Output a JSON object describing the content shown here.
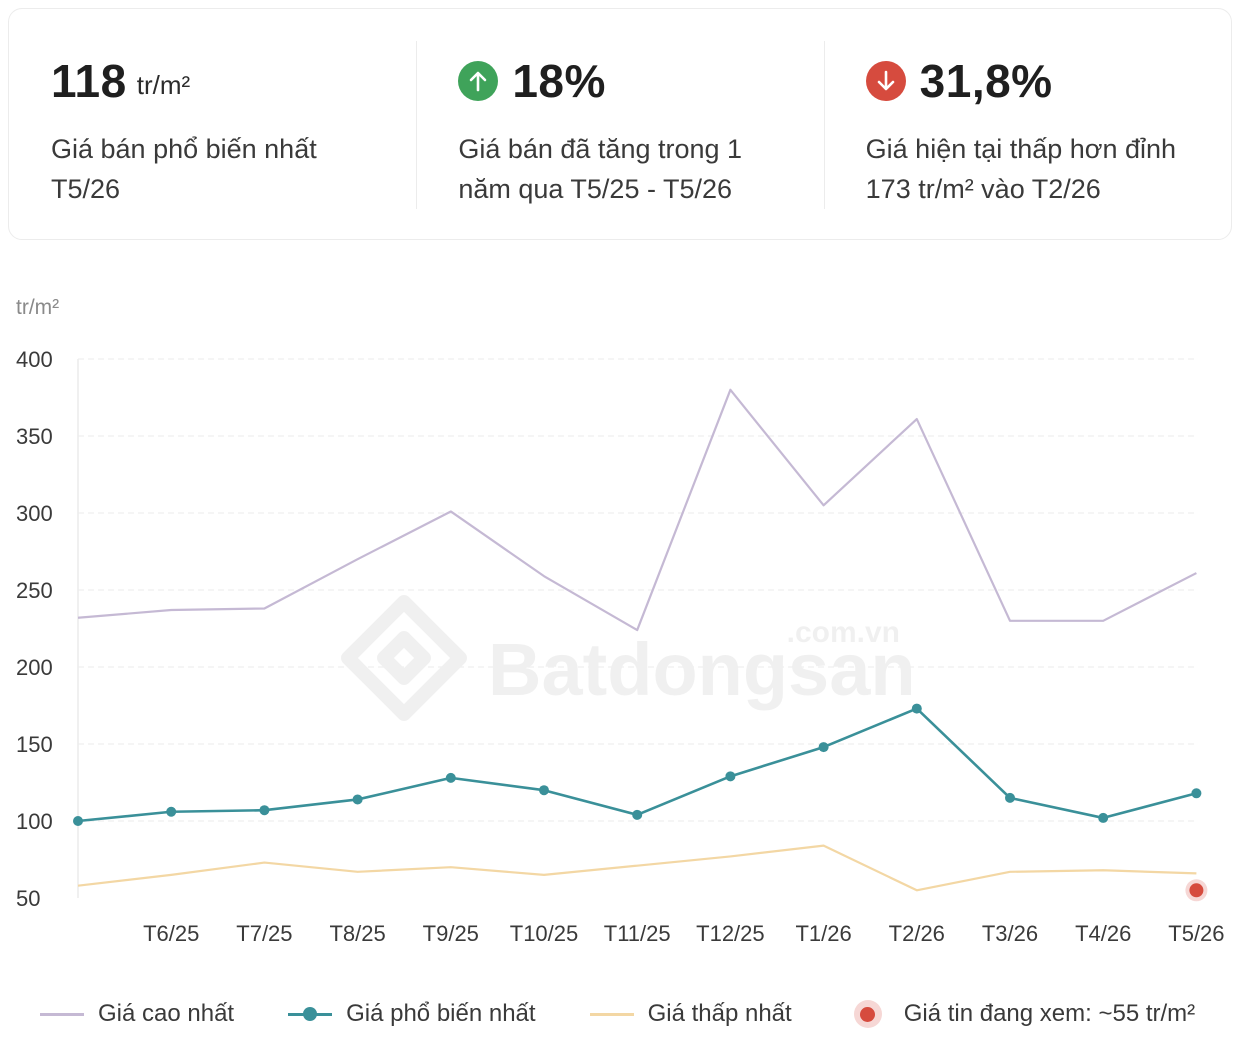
{
  "stats": [
    {
      "value": "118",
      "unit": "tr/m²",
      "badge": null,
      "line1": "Giá bán phổ biến nhất",
      "line2": "T5/26"
    },
    {
      "value": "18%",
      "unit": "",
      "badge": "up",
      "badge_icon": "arrow-up-icon",
      "badge_color": "#3fa35a",
      "line1": "Giá bán đã tăng trong 1",
      "line2": "năm qua T5/25 - T5/26"
    },
    {
      "value": "31,8%",
      "unit": "",
      "badge": "down",
      "badge_icon": "arrow-down-icon",
      "badge_color": "#d64b3e",
      "line1": "Giá hiện tại thấp hơn đỉnh",
      "line2": "173 tr/m² vào T2/26"
    }
  ],
  "watermark": {
    "brand": "Batdongsan",
    "suffix": ".com.vn"
  },
  "chart_data": {
    "type": "line",
    "ylabel": "tr/m²",
    "ylim": [
      50,
      400
    ],
    "yticks": [
      400,
      350,
      300,
      250,
      200,
      150,
      100,
      50
    ],
    "grid": true,
    "x_labels": [
      "",
      "T6/25",
      "T7/25",
      "T8/25",
      "T9/25",
      "T10/25",
      "T11/25",
      "T12/25",
      "T1/26",
      "T2/26",
      "T3/26",
      "T4/26",
      "T5/26"
    ],
    "series": [
      {
        "name": "Giá cao nhất",
        "color": "#c5b9d4",
        "markers": false,
        "values": [
          232,
          237,
          238,
          270,
          301,
          259,
          224,
          380,
          305,
          361,
          230,
          230,
          261
        ]
      },
      {
        "name": "Giá phổ biến nhất",
        "color": "#3a9099",
        "markers": true,
        "values": [
          100,
          106,
          107,
          114,
          128,
          120,
          104,
          129,
          148,
          173,
          115,
          102,
          118
        ]
      },
      {
        "name": "Giá thấp nhất",
        "color": "#f3d7a4",
        "markers": false,
        "values": [
          58,
          65,
          73,
          67,
          70,
          65,
          71,
          77,
          84,
          55,
          67,
          68,
          66
        ]
      }
    ],
    "highlight": {
      "label": "Giá tin đang xem: ~55 tr/m²",
      "x_index": 12,
      "value": 55,
      "color": "#d64b3e"
    }
  }
}
